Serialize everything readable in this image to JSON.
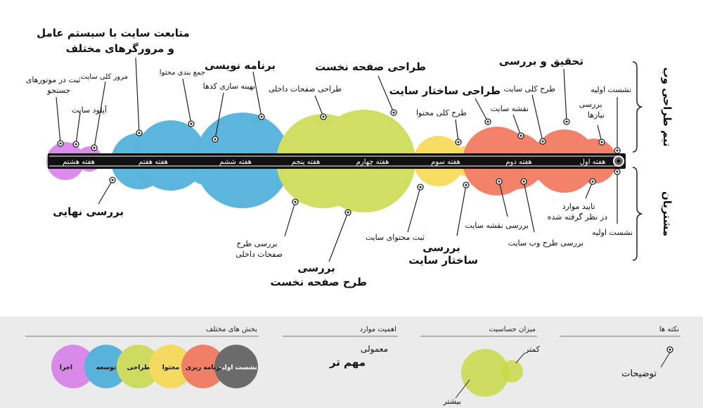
{
  "colors": {
    "intro": "#5a5a5a",
    "planning": "#f26d52",
    "content": "#f7d84a",
    "design": "#c9d94a",
    "development": "#3fa9d6",
    "execution": "#d77ae8",
    "axis": "#111111"
  },
  "side_labels": {
    "top": "تیم طراحی وب",
    "bottom": "مشتریان"
  },
  "weeks": [
    "هفته اول",
    "هفته دوم",
    "هفته سوم",
    "هفته چهارم",
    "هفته پنجم",
    "هفته ششم",
    "هفته هفتم",
    "هفته هشتم"
  ],
  "phases": [
    {
      "name": "intro",
      "color": "#5a5a5a"
    },
    {
      "name": "planning",
      "color": "#f26d52"
    },
    {
      "name": "content",
      "color": "#f7d84a"
    },
    {
      "name": "design",
      "color": "#c9d94a"
    },
    {
      "name": "development",
      "color": "#3fa9d6"
    },
    {
      "name": "execution",
      "color": "#d77ae8"
    }
  ],
  "top_labels": [
    "نشست اولیه",
    "بررسی\nنیازها",
    "تحقیق و بررسی",
    "طرح کلی سایت",
    "نقشه سایت",
    "طراحی ساختار سایت",
    "طرح کلی محتوا",
    "طراحی صفحه نخست",
    "طراحی صفحات داخلی",
    "برنامه نویسی",
    "بهینه سازی کدها",
    "جمع بندی محتوا",
    "متابعت سایت با سیستم عامل\nو مرورگرهای مختلف",
    "مرور کلی سایت",
    "آپلود سایت",
    "ثبت در موتورهای\nجستجو"
  ],
  "bottom_labels": [
    "نشست اولیه",
    "تایید موارد\nدر نظر گرفته شده",
    "بررسی طرح وب سایت",
    "بررسی نقشه سایت",
    "بررسی\nساختار سایت",
    "ثبت محتوای سایت",
    "بررسی\nطرح صفحه نخست",
    "بررسی طرح\nصفحات داخلی",
    "بررسی نهایی"
  ],
  "legend": {
    "sections": {
      "title": "بخش های مختلف",
      "items": [
        "نشست اولیه",
        "برنامه ریزی",
        "محتوا",
        "طراحی",
        "توسعه",
        "اجرا"
      ]
    },
    "importance": {
      "title": "اهمیت موارد",
      "normal": "معمولی",
      "important": "مهم تر"
    },
    "sensitivity": {
      "title": "میزان حساسیت",
      "less": "کمتر",
      "more": "بیشتر"
    },
    "notes": {
      "title": "نکته ها",
      "desc": "توضیحات"
    }
  }
}
